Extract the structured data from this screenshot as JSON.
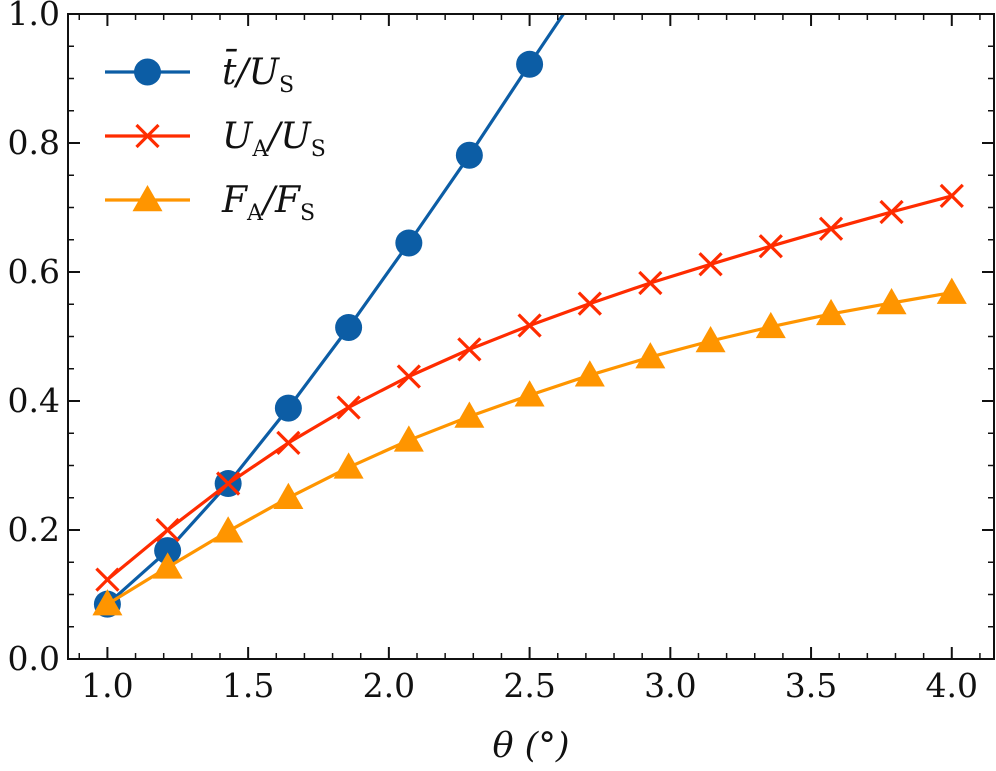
{
  "chart_data": {
    "type": "line",
    "title": "",
    "xlabel": "θ (°)",
    "ylabel": "",
    "xlim": [
      0.86,
      4.15
    ],
    "ylim": [
      0.0,
      1.0
    ],
    "x_ticks": [
      "1.0",
      "1.5",
      "2.0",
      "2.5",
      "3.0",
      "3.5",
      "4.0"
    ],
    "y_ticks": [
      "0.0",
      "0.2",
      "0.4",
      "0.6",
      "0.8",
      "1.0"
    ],
    "legend_position": "top-left",
    "series": [
      {
        "name": "t̄/U_S",
        "label_main": "t̄/U",
        "label_sub": "S",
        "color": "#0C5DA5",
        "marker": "circle",
        "x": [
          1.0,
          1.214,
          1.429,
          1.643,
          1.857,
          2.071,
          2.286,
          2.5
        ],
        "y": [
          0.085,
          0.168,
          0.272,
          0.389,
          0.514,
          0.645,
          0.781,
          0.922
        ],
        "line_extends_to": [
          2.62,
          1.0
        ]
      },
      {
        "name": "U_A/U_S",
        "label_main": "U",
        "label_sub": "A",
        "label_main2": "/U",
        "label_sub2": "S",
        "color": "#FF2C00",
        "marker": "x",
        "x": [
          1.0,
          1.214,
          1.429,
          1.643,
          1.857,
          2.071,
          2.286,
          2.5,
          2.714,
          2.929,
          3.143,
          3.357,
          3.571,
          3.786,
          4.0
        ],
        "y": [
          0.123,
          0.2,
          0.272,
          0.335,
          0.39,
          0.438,
          0.48,
          0.517,
          0.551,
          0.583,
          0.612,
          0.64,
          0.667,
          0.693,
          0.718
        ]
      },
      {
        "name": "F̄_A/F̄_S",
        "label_main": "F",
        "label_sub": "A",
        "label_main2": "/F",
        "label_sub2": "S",
        "color": "#FF9500",
        "marker": "triangle",
        "x": [
          1.0,
          1.214,
          1.429,
          1.643,
          1.857,
          2.071,
          2.286,
          2.5,
          2.714,
          2.929,
          3.143,
          3.357,
          3.571,
          3.786,
          4.0
        ],
        "y": [
          0.085,
          0.142,
          0.198,
          0.25,
          0.297,
          0.339,
          0.376,
          0.409,
          0.44,
          0.468,
          0.493,
          0.515,
          0.535,
          0.552,
          0.568
        ]
      }
    ]
  }
}
